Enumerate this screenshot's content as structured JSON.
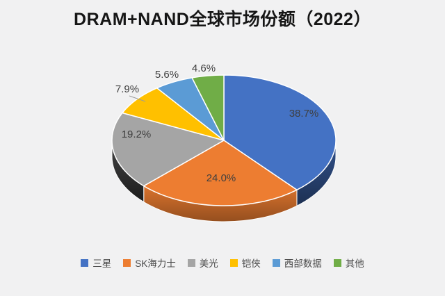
{
  "chart_data": {
    "type": "pie",
    "effect": "3d",
    "title": "DRAM+NAND全球市场份额（2022）",
    "legend_position": "bottom",
    "direction": "clockwise",
    "start_angle_deg": 0,
    "background_color": "#f1f1f2",
    "label_color": "#3f3f3f",
    "series": [
      {
        "name": "三星",
        "value": 38.7,
        "label": "38.7%",
        "color": "#4472C4"
      },
      {
        "name": "SK海力士",
        "value": 24.0,
        "label": "24.0%",
        "color": "#ED7D31"
      },
      {
        "name": "美光",
        "value": 19.2,
        "label": "19.2%",
        "color": "#A5A5A5"
      },
      {
        "name": "铠侠",
        "value": 7.9,
        "label": "7.9%",
        "color": "#FFC000"
      },
      {
        "name": "西部数据",
        "value": 5.6,
        "label": "5.6%",
        "color": "#5B9BD5"
      },
      {
        "name": "其他",
        "value": 4.6,
        "label": "4.6%",
        "color": "#70AD47"
      }
    ]
  }
}
